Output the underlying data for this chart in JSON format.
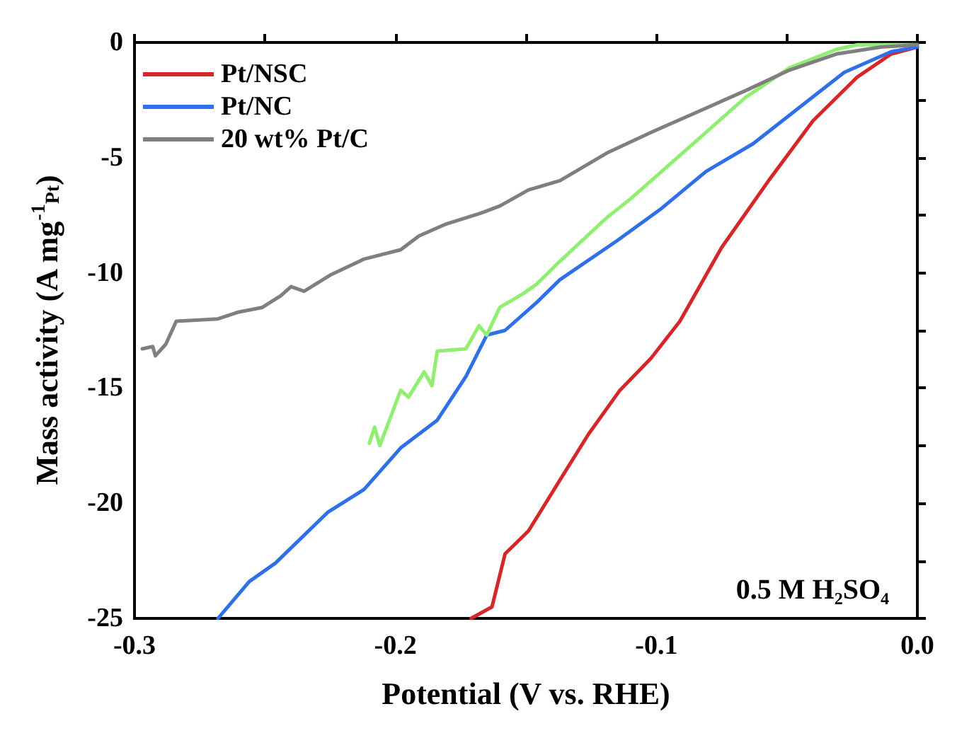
{
  "chart_data": {
    "type": "line",
    "xlabel": "Potential (V vs. RHE)",
    "ylabel": "Mass activity (A mg$^{-1}$$_{Pt}$)",
    "xlim": [
      -0.3,
      0
    ],
    "ylim": [
      -25,
      0
    ],
    "xticks": [
      -0.3,
      {
        "value": -0.25,
        "label": null
      },
      -0.2,
      {
        "value": -0.15,
        "label": null
      },
      -0.1,
      {
        "value": -0.05,
        "label": null
      },
      {
        "value": 0,
        "label": "0.0"
      }
    ],
    "yticks": [
      -25,
      {
        "value": -22.5,
        "label": null
      },
      -20,
      {
        "value": -17.5,
        "label": null
      },
      -15,
      {
        "value": -12.5,
        "label": null
      },
      -10,
      {
        "value": -7.5,
        "label": null
      },
      -5,
      {
        "value": -2.5,
        "label": null
      },
      0
    ],
    "grid": false,
    "legend": "top left",
    "line_style": "solid",
    "marker": "none",
    "annotations": [
      "0.5 M H₂SO₄"
    ],
    "series": [
      {
        "name": "Pt/NSC",
        "color": "#d62728",
        "x": [
          -0.171,
          -0.163,
          -0.158,
          -0.149,
          -0.137,
          -0.126,
          -0.114,
          -0.102,
          -0.091,
          -0.075,
          -0.057,
          -0.04,
          -0.023,
          -0.01,
          0
        ],
        "values": [
          -25,
          -24.5,
          -22.2,
          -21.2,
          -19,
          -17,
          -15.1,
          -13.7,
          -12.1,
          -8.9,
          -6,
          -3.4,
          -1.5,
          -0.5,
          -0.2
        ]
      },
      {
        "name": "Pt/NC",
        "color": "#2f6fe8",
        "x": [
          -0.268,
          -0.256,
          -0.246,
          -0.226,
          -0.212,
          -0.198,
          -0.184,
          -0.173,
          -0.165,
          -0.158,
          -0.146,
          -0.137,
          -0.115,
          -0.098,
          -0.081,
          -0.063,
          -0.045,
          -0.028,
          -0.01,
          0
        ],
        "values": [
          -25,
          -23.4,
          -22.6,
          -20.4,
          -19.4,
          -17.6,
          -16.4,
          -14.5,
          -12.7,
          -12.5,
          -11.3,
          -10.3,
          -8.6,
          -7.2,
          -5.6,
          -4.4,
          -2.8,
          -1.3,
          -0.4,
          -0.2
        ]
      },
      {
        "color": "#90ee70",
        "x": [
          -0.21,
          -0.208,
          -0.206,
          -0.198,
          -0.195,
          -0.189,
          -0.186,
          -0.184,
          -0.173,
          -0.168,
          -0.165,
          -0.16,
          -0.151,
          -0.146,
          -0.137,
          -0.119,
          -0.11,
          -0.102,
          -0.084,
          -0.066,
          -0.049,
          -0.031,
          -0.023,
          0
        ],
        "values": [
          -17.4,
          -16.7,
          -17.5,
          -15.1,
          -15.4,
          -14.3,
          -14.9,
          -13.4,
          -13.3,
          -12.3,
          -12.7,
          -11.5,
          -10.9,
          -10.5,
          -9.5,
          -7.6,
          -6.8,
          -6,
          -4.2,
          -2.4,
          -1.1,
          -0.3,
          -0.1,
          -0.1
        ]
      },
      {
        "name": "20 wt% Pt/C",
        "color": "#7f7f7f",
        "x": [
          -0.297,
          -0.293,
          -0.292,
          -0.288,
          -0.284,
          -0.268,
          -0.26,
          -0.251,
          -0.244,
          -0.24,
          -0.235,
          -0.225,
          -0.212,
          -0.198,
          -0.191,
          -0.181,
          -0.167,
          -0.16,
          -0.149,
          -0.137,
          -0.119,
          -0.102,
          -0.084,
          -0.066,
          -0.049,
          -0.031,
          -0.014,
          0
        ],
        "values": [
          -13.3,
          -13.2,
          -13.6,
          -13.1,
          -12.1,
          -12,
          -11.7,
          -11.5,
          -11,
          -10.6,
          -10.8,
          -10.1,
          -9.4,
          -9,
          -8.4,
          -7.9,
          -7.4,
          -7.1,
          -6.4,
          -6,
          -4.8,
          -3.9,
          -3,
          -2.1,
          -1.2,
          -0.5,
          -0.2,
          -0.1
        ]
      }
    ]
  }
}
